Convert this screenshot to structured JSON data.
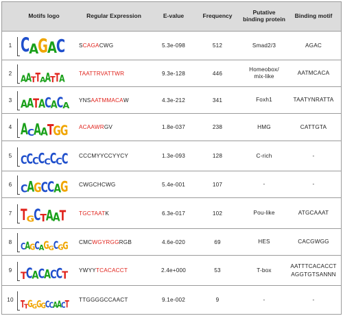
{
  "headers": {
    "logo": "Motifs logo",
    "regex": "Regular Expression",
    "evalue": "E-value",
    "frequency": "Frequency",
    "protein": "Putative binding protein",
    "motif": "Binding motif"
  },
  "colors": {
    "A": "#1aa01a",
    "C": "#1f4fcc",
    "G": "#f0a500",
    "T": "#e0231c",
    "highlight": "#e0231c",
    "header_bg": "#dcdcdc"
  },
  "rows": [
    {
      "num": "1",
      "logo": "CAGAC",
      "regex_pre": "S",
      "regex_red": "CAGA",
      "regex_post": "CWG",
      "evalue": "5.3e-098",
      "frequency": "512",
      "protein": "Smad2/3",
      "motif": "AGAC"
    },
    {
      "num": "2",
      "logo": "AATTAATTA",
      "regex_pre": "",
      "regex_red": "TAATTRVATTWR",
      "regex_post": "",
      "evalue": "9.3e-128",
      "frequency": "446",
      "protein": "Homeobox/\nmix-like",
      "motif": "AATMCACA"
    },
    {
      "num": "3",
      "logo": "AATACACA",
      "regex_pre": "YNS",
      "regex_red": "AATMMACA",
      "regex_post": "W",
      "evalue": "4.3e-212",
      "frequency": "341",
      "protein": "Foxh1",
      "motif": "TAATYNRATTA"
    },
    {
      "num": "4",
      "logo": "ACAATGG",
      "regex_pre": "",
      "regex_red": "ACAAWR",
      "regex_post": "GV",
      "evalue": "1.8e-037",
      "frequency": "238",
      "protein": "HMG",
      "motif": "CATTGTA"
    },
    {
      "num": "5",
      "logo": "CCCCCCCC",
      "regex_pre": "CCCMYYCCYYCY",
      "regex_red": "",
      "regex_post": "",
      "evalue": "1.3e-093",
      "frequency": "128",
      "protein": "C-rich",
      "motif": "-"
    },
    {
      "num": "6",
      "logo": "CAGCCAG",
      "regex_pre": "CWGCHCWG",
      "regex_red": "",
      "regex_post": "",
      "evalue": "5.4e-001",
      "frequency": "107",
      "protein": "-",
      "motif": "-"
    },
    {
      "num": "7",
      "logo": "TGCTAAT",
      "regex_pre": "",
      "regex_red": "TGCTAAT",
      "regex_post": "K",
      "evalue": "6.3e-017",
      "frequency": "102",
      "protein": "Pou-like",
      "motif": "ATGCAAAT"
    },
    {
      "num": "8",
      "logo": "CAGCAGGCGG",
      "regex_pre": "CMC",
      "regex_red": "WGYRGG",
      "regex_post": "RGB",
      "evalue": "4.6e-020",
      "frequency": "69",
      "protein": "HES",
      "motif": "CACGWGG"
    },
    {
      "num": "9",
      "logo": "TCACACCT",
      "regex_pre": "YWYY",
      "regex_red": "TCACACCT",
      "regex_post": "",
      "evalue": "2.4e+000",
      "frequency": "53",
      "protein": "T-box",
      "motif": "AATTTCACACCT\nAGGTGTSANNN"
    },
    {
      "num": "10",
      "logo": "TTGGGGCCAACT",
      "regex_pre": "TTGGGGCCAACT",
      "regex_red": "",
      "regex_post": "",
      "evalue": "9.1e-002",
      "frequency": "9",
      "protein": "-",
      "motif": "-"
    }
  ]
}
